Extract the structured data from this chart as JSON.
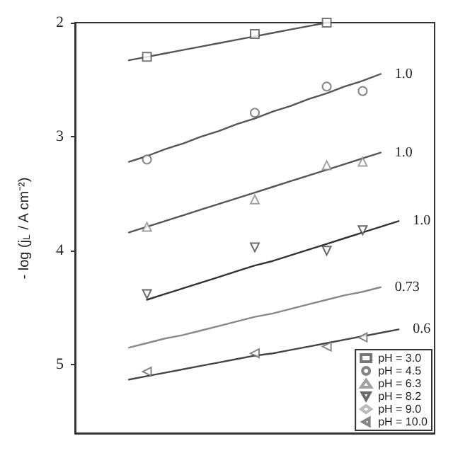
{
  "chart_data": {
    "type": "scatter",
    "ylabel": "- log (j$_{L}$ / A cm⁻²)",
    "categories": [
      null,
      null,
      null,
      null,
      null,
      null,
      null,
      null,
      null,
      null,
      null,
      null,
      null,
      null,
      null,
      null,
      null,
      null,
      null,
      null,
      null
    ],
    "ylim": [
      5.6,
      2
    ],
    "yticks": [
      2,
      3,
      4,
      5
    ],
    "grid": false,
    "legend": "bottom right",
    "tick_labels": "y",
    "series": [
      {
        "name": "pH = 3.0",
        "marker": "square",
        "color": "#555555",
        "values": [
          null,
          null,
          null,
          null,
          2.3,
          null,
          null,
          null,
          null,
          null,
          2.1,
          null,
          null,
          null,
          2.0,
          null,
          null,
          null,
          null,
          null,
          null
        ]
      },
      {
        "name": "pH = 4.5",
        "marker": "circle",
        "color": "#666666",
        "values": [
          null,
          null,
          null,
          null,
          3.2,
          null,
          null,
          null,
          null,
          null,
          2.79,
          null,
          null,
          null,
          2.56,
          null,
          2.6,
          null,
          null,
          null,
          null
        ]
      },
      {
        "name": "pH = 6.3",
        "marker": "triangle",
        "color": "#888888",
        "values": [
          null,
          null,
          null,
          null,
          3.79,
          null,
          null,
          null,
          null,
          null,
          3.55,
          null,
          null,
          null,
          3.25,
          null,
          3.22,
          null,
          null,
          null,
          null
        ]
      },
      {
        "name": "pH = 8.2",
        "marker": "triangle-down",
        "color": "#444444",
        "values": [
          null,
          null,
          null,
          null,
          4.38,
          null,
          null,
          null,
          null,
          null,
          3.97,
          null,
          null,
          null,
          4.0,
          null,
          3.82,
          null,
          null,
          null,
          null
        ]
      },
      {
        "name": "pH = 9.0",
        "marker": "diamond",
        "color": "#aaaaaa",
        "values": [
          null,
          null,
          null,
          null,
          null,
          null,
          null,
          null,
          null,
          null,
          null,
          null,
          null,
          null,
          null,
          null,
          null,
          null,
          null,
          null,
          null
        ]
      },
      {
        "name": "pH = 10.0",
        "marker": "triangle-left",
        "color": "#666666",
        "values": [
          null,
          null,
          null,
          null,
          5.06,
          null,
          null,
          null,
          null,
          null,
          4.9,
          null,
          null,
          null,
          4.84,
          null,
          4.76,
          null,
          null,
          null,
          null
        ]
      },
      {
        "type": "line",
        "color": "#555555",
        "values": [
          null,
          null,
          null,
          2.33,
          2.3,
          2.27,
          2.24,
          2.21,
          2.18,
          2.15,
          2.12,
          2.09,
          2.06,
          2.03,
          2.0,
          null,
          null,
          null,
          null,
          null,
          null
        ]
      },
      {
        "type": "line",
        "name": "1.0",
        "color": "#555555",
        "values": [
          null,
          null,
          null,
          3.22,
          3.17,
          3.11,
          3.06,
          3.0,
          2.95,
          2.89,
          2.84,
          2.78,
          2.73,
          2.67,
          2.62,
          2.56,
          2.51,
          2.45,
          null,
          null,
          null
        ]
      },
      {
        "type": "line",
        "name": "1.0",
        "color": "#555555",
        "values": [
          null,
          null,
          null,
          3.84,
          3.79,
          3.74,
          3.69,
          3.64,
          3.59,
          3.54,
          3.49,
          3.44,
          3.39,
          3.34,
          3.29,
          3.24,
          3.19,
          3.14,
          null,
          null,
          null
        ]
      },
      {
        "type": "line",
        "name": "1.0",
        "color": "#333333",
        "values": [
          null,
          null,
          null,
          null,
          4.43,
          4.38,
          4.33,
          4.28,
          4.23,
          4.18,
          4.13,
          4.09,
          4.04,
          3.99,
          3.94,
          3.89,
          3.84,
          3.79,
          3.74,
          null,
          null
        ]
      },
      {
        "type": "line",
        "name": "0.73",
        "color": "#888888",
        "values": [
          null,
          null,
          null,
          4.85,
          4.81,
          4.77,
          4.74,
          4.7,
          4.66,
          4.62,
          4.58,
          4.55,
          4.51,
          4.47,
          4.43,
          4.39,
          4.36,
          4.32,
          null,
          null,
          null
        ]
      },
      {
        "type": "line",
        "name": "0.6",
        "color": "#444444",
        "values": [
          null,
          null,
          null,
          5.13,
          5.1,
          5.07,
          5.04,
          5.01,
          4.98,
          4.95,
          4.92,
          4.9,
          4.87,
          4.84,
          4.81,
          4.78,
          4.75,
          4.72,
          4.69,
          null,
          null
        ]
      }
    ]
  }
}
